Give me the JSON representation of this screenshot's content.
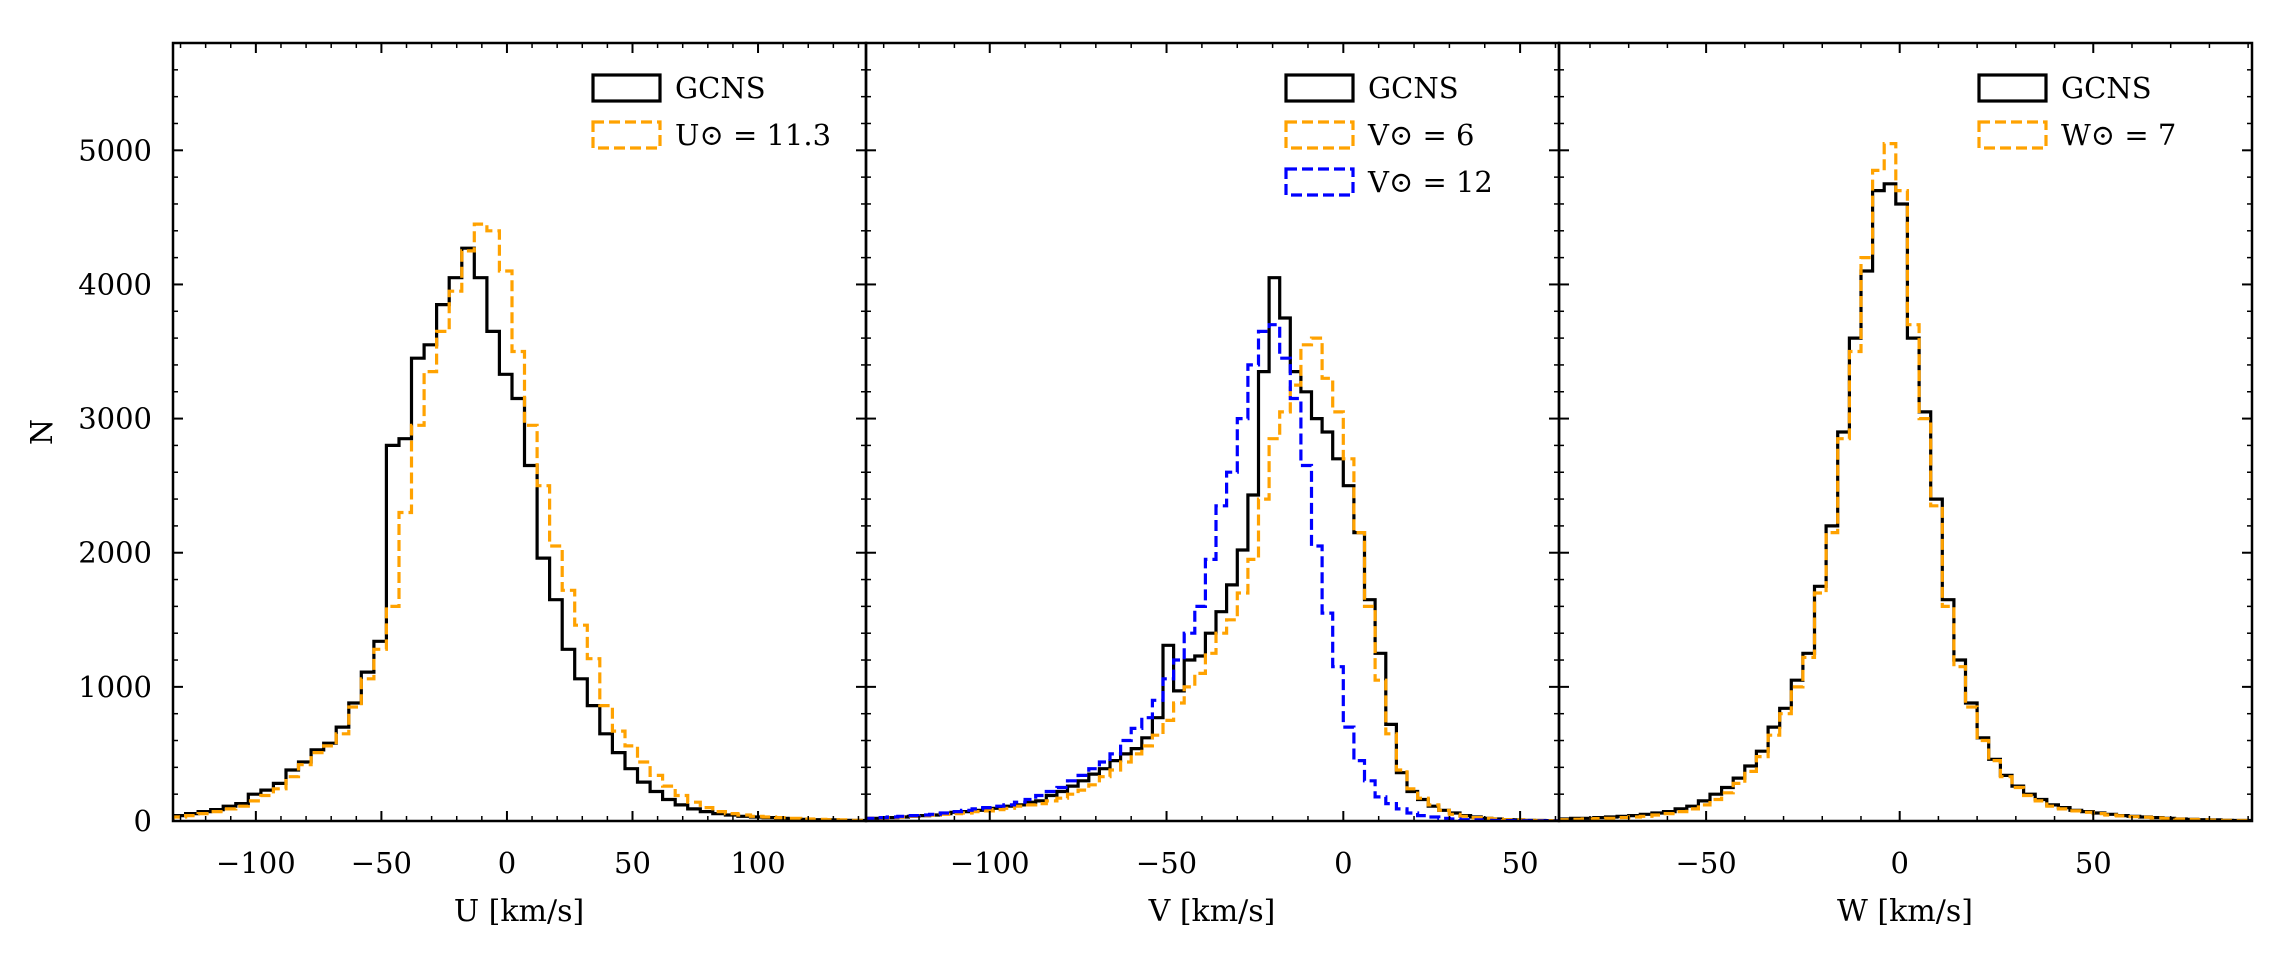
{
  "chart_data": [
    {
      "type": "histogram",
      "panel": "U",
      "xlabel": "U [km/s]",
      "ylabel": "N",
      "xlim": [
        -133,
        143
      ],
      "ylim": [
        0,
        5800
      ],
      "xticks": [
        -100,
        -50,
        0,
        50,
        100
      ],
      "xtick_labels": [
        "−100",
        "−50",
        "0",
        "50",
        "100"
      ],
      "yticks": [
        0,
        1000,
        2000,
        3000,
        4000,
        5000
      ],
      "ytick_labels": [
        "0",
        "1000",
        "2000",
        "3000",
        "4000",
        "5000"
      ],
      "series": [
        {
          "name": "GCNS",
          "legend": "GCNS",
          "color": "#000000",
          "style": "solid",
          "x": [
            -133,
            -128,
            -123,
            -118,
            -113,
            -108,
            -103,
            -98,
            -93,
            -88,
            -83,
            -78,
            -73,
            -68,
            -63,
            -58,
            -53,
            -48,
            -43,
            -38,
            -33,
            -28,
            -23,
            -18,
            -13,
            -8,
            -3,
            2,
            7,
            12,
            17,
            22,
            27,
            32,
            37,
            42,
            47,
            52,
            57,
            62,
            67,
            72,
            77,
            82,
            87,
            92,
            97,
            102,
            107,
            112,
            117,
            122,
            127,
            132,
            137,
            143
          ],
          "values": [
            40,
            55,
            70,
            85,
            110,
            130,
            200,
            230,
            280,
            380,
            440,
            530,
            580,
            700,
            880,
            1110,
            1340,
            2800,
            2850,
            3450,
            3550,
            3850,
            4050,
            4270,
            4050,
            3650,
            3330,
            3150,
            2650,
            1960,
            1650,
            1280,
            1060,
            860,
            650,
            510,
            390,
            290,
            220,
            160,
            120,
            90,
            70,
            55,
            45,
            35,
            30,
            25,
            20,
            15,
            12,
            10,
            8,
            5,
            4
          ]
        },
        {
          "name": "U_sun",
          "legend": "U⊙ = 11.3",
          "color": "#FFA200",
          "style": "dashed",
          "x": [
            -133,
            -128,
            -123,
            -118,
            -113,
            -108,
            -103,
            -98,
            -93,
            -88,
            -83,
            -78,
            -73,
            -68,
            -63,
            -58,
            -53,
            -48,
            -43,
            -38,
            -33,
            -28,
            -23,
            -18,
            -13,
            -8,
            -3,
            2,
            7,
            12,
            17,
            22,
            27,
            32,
            37,
            42,
            47,
            52,
            57,
            62,
            67,
            72,
            77,
            82,
            87,
            92,
            97,
            102,
            107,
            112,
            117,
            122,
            127,
            132,
            137,
            143
          ],
          "values": [
            30,
            40,
            55,
            70,
            90,
            110,
            150,
            190,
            240,
            330,
            420,
            510,
            560,
            650,
            850,
            1060,
            1280,
            1600,
            2300,
            2950,
            3350,
            3650,
            3950,
            4250,
            4450,
            4400,
            4100,
            3500,
            2950,
            2500,
            2050,
            1720,
            1460,
            1210,
            860,
            670,
            560,
            440,
            340,
            260,
            190,
            140,
            100,
            70,
            55,
            45,
            35,
            30,
            25,
            20,
            15,
            12,
            10,
            8,
            5
          ]
        }
      ]
    },
    {
      "type": "histogram",
      "panel": "V",
      "xlabel": "V [km/s]",
      "xlim": [
        -135,
        61
      ],
      "ylim": [
        0,
        5800
      ],
      "xticks": [
        -100,
        -50,
        0,
        50
      ],
      "xtick_labels": [
        "−100",
        "−50",
        "0",
        "50"
      ],
      "series": [
        {
          "name": "GCNS",
          "legend": "GCNS",
          "color": "#000000",
          "style": "solid",
          "x": [
            -135,
            -132,
            -129,
            -126,
            -123,
            -120,
            -117,
            -114,
            -111,
            -108,
            -105,
            -102,
            -99,
            -96,
            -93,
            -90,
            -87,
            -84,
            -81,
            -78,
            -75,
            -72,
            -69,
            -66,
            -63,
            -60,
            -57,
            -54,
            -51,
            -48,
            -45,
            -42,
            -39,
            -36,
            -33,
            -30,
            -27,
            -24,
            -21,
            -18,
            -15,
            -12,
            -9,
            -6,
            -3,
            0,
            3,
            6,
            9,
            12,
            15,
            18,
            21,
            24,
            27,
            30,
            33,
            36,
            39,
            42,
            45,
            48,
            51,
            54,
            57,
            61
          ],
          "values": [
            20,
            20,
            25,
            30,
            35,
            40,
            45,
            55,
            65,
            70,
            80,
            90,
            95,
            110,
            120,
            140,
            150,
            190,
            220,
            260,
            300,
            350,
            390,
            450,
            500,
            540,
            620,
            770,
            1310,
            970,
            1200,
            1230,
            1400,
            1560,
            1760,
            2020,
            2430,
            3350,
            4050,
            3750,
            3350,
            3200,
            3000,
            2900,
            2700,
            2500,
            2150,
            1650,
            1250,
            720,
            360,
            220,
            160,
            110,
            80,
            60,
            40,
            30,
            20,
            15,
            10,
            8,
            5,
            4,
            3
          ]
        },
        {
          "name": "V_sun_6",
          "legend": "V⊙ = 6",
          "color": "#FFA200",
          "style": "dashed",
          "x": [
            -135,
            -132,
            -129,
            -126,
            -123,
            -120,
            -117,
            -114,
            -111,
            -108,
            -105,
            -102,
            -99,
            -96,
            -93,
            -90,
            -87,
            -84,
            -81,
            -78,
            -75,
            -72,
            -69,
            -66,
            -63,
            -60,
            -57,
            -54,
            -51,
            -48,
            -45,
            -42,
            -39,
            -36,
            -33,
            -30,
            -27,
            -24,
            -21,
            -18,
            -15,
            -12,
            -9,
            -6,
            -3,
            0,
            3,
            6,
            9,
            12,
            15,
            18,
            21,
            24,
            27,
            30,
            33,
            36,
            39,
            42,
            45,
            48,
            51,
            54,
            57,
            61
          ],
          "values": [
            20,
            20,
            25,
            30,
            35,
            40,
            45,
            50,
            55,
            60,
            70,
            75,
            85,
            95,
            110,
            120,
            130,
            150,
            170,
            200,
            230,
            270,
            330,
            380,
            440,
            500,
            560,
            640,
            750,
            880,
            1000,
            1100,
            1250,
            1400,
            1500,
            1700,
            1950,
            2400,
            2850,
            3050,
            3250,
            3550,
            3600,
            3300,
            3050,
            2700,
            2150,
            1600,
            1050,
            650,
            380,
            240,
            170,
            120,
            80,
            50,
            35,
            25,
            20,
            15,
            10,
            8,
            5,
            4,
            3
          ]
        },
        {
          "name": "V_sun_12",
          "legend": "V⊙ = 12",
          "color": "#0000FF",
          "style": "dashed",
          "x": [
            -135,
            -132,
            -129,
            -126,
            -123,
            -120,
            -117,
            -114,
            -111,
            -108,
            -105,
            -102,
            -99,
            -96,
            -93,
            -90,
            -87,
            -84,
            -81,
            -78,
            -75,
            -72,
            -69,
            -66,
            -63,
            -60,
            -57,
            -54,
            -51,
            -48,
            -45,
            -42,
            -39,
            -36,
            -33,
            -30,
            -27,
            -24,
            -21,
            -18,
            -15,
            -12,
            -9,
            -6,
            -3,
            0,
            3,
            6,
            9,
            12,
            15,
            18,
            21,
            24,
            27,
            30,
            33,
            36,
            39,
            42,
            45,
            48,
            51,
            54,
            57,
            61
          ],
          "values": [
            20,
            25,
            30,
            35,
            40,
            45,
            50,
            60,
            70,
            80,
            90,
            100,
            110,
            120,
            140,
            160,
            190,
            220,
            250,
            300,
            340,
            390,
            440,
            500,
            600,
            690,
            770,
            900,
            1060,
            1200,
            1400,
            1600,
            1950,
            2350,
            2600,
            3000,
            3400,
            3650,
            3700,
            3450,
            3150,
            2650,
            2050,
            1550,
            1150,
            700,
            450,
            300,
            180,
            130,
            90,
            60,
            40,
            30,
            20,
            15,
            10,
            8,
            5,
            4,
            3,
            2,
            2,
            1,
            1
          ]
        }
      ]
    },
    {
      "type": "histogram",
      "panel": "W",
      "xlabel": "W [km/s]",
      "xlim": [
        -88,
        91
      ],
      "ylim": [
        0,
        5800
      ],
      "xticks": [
        -50,
        0,
        50
      ],
      "xtick_labels": [
        "−50",
        "0",
        "50"
      ],
      "series": [
        {
          "name": "GCNS",
          "legend": "GCNS",
          "color": "#000000",
          "style": "solid",
          "x": [
            -88,
            -85,
            -82,
            -79,
            -76,
            -73,
            -70,
            -67,
            -64,
            -61,
            -58,
            -55,
            -52,
            -49,
            -46,
            -43,
            -40,
            -37,
            -34,
            -31,
            -28,
            -25,
            -22,
            -19,
            -16,
            -13,
            -10,
            -7,
            -4,
            -1,
            2,
            5,
            8,
            11,
            14,
            17,
            20,
            23,
            26,
            29,
            32,
            35,
            38,
            41,
            44,
            47,
            50,
            53,
            56,
            59,
            62,
            65,
            68,
            71,
            74,
            77,
            80,
            83,
            86,
            91
          ],
          "values": [
            15,
            20,
            20,
            25,
            30,
            35,
            40,
            50,
            60,
            70,
            90,
            110,
            150,
            200,
            250,
            320,
            410,
            520,
            700,
            840,
            1050,
            1250,
            1750,
            2200,
            2900,
            3600,
            4100,
            4700,
            4750,
            4600,
            3600,
            3050,
            2400,
            1650,
            1200,
            880,
            620,
            460,
            340,
            260,
            200,
            160,
            120,
            100,
            80,
            70,
            60,
            50,
            40,
            35,
            30,
            25,
            20,
            15,
            12,
            10,
            8,
            5,
            4
          ]
        },
        {
          "name": "W_sun",
          "legend": "W⊙ = 7",
          "color": "#FFA200",
          "style": "dashed",
          "x": [
            -88,
            -85,
            -82,
            -79,
            -76,
            -73,
            -70,
            -67,
            -64,
            -61,
            -58,
            -55,
            -52,
            -49,
            -46,
            -43,
            -40,
            -37,
            -34,
            -31,
            -28,
            -25,
            -22,
            -19,
            -16,
            -13,
            -10,
            -7,
            -4,
            -1,
            2,
            5,
            8,
            11,
            14,
            17,
            20,
            23,
            26,
            29,
            32,
            35,
            38,
            41,
            44,
            47,
            50,
            53,
            56,
            59,
            62,
            65,
            68,
            71,
            74,
            77,
            80,
            83,
            86,
            91
          ],
          "values": [
            10,
            12,
            15,
            18,
            20,
            25,
            30,
            35,
            45,
            55,
            70,
            90,
            120,
            160,
            210,
            280,
            370,
            480,
            640,
            800,
            1000,
            1220,
            1700,
            2150,
            2850,
            3500,
            4200,
            4850,
            5050,
            4700,
            3700,
            3000,
            2350,
            1600,
            1150,
            850,
            600,
            450,
            330,
            250,
            190,
            150,
            110,
            90,
            75,
            65,
            55,
            45,
            38,
            32,
            28,
            22,
            18,
            14,
            11,
            9,
            7,
            5,
            4
          ]
        }
      ]
    }
  ]
}
